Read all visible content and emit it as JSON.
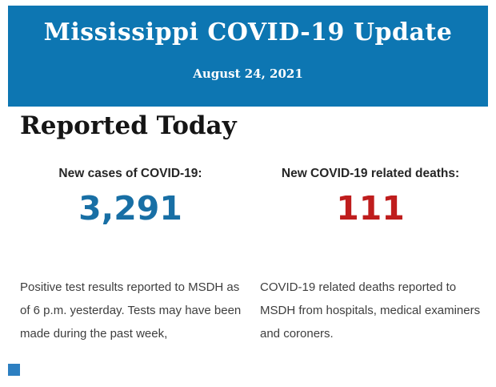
{
  "header": {
    "title": "Mississippi COVID-19 Update",
    "date": "August 24, 2021",
    "background_color": "#0d76b2",
    "text_color": "#ffffff"
  },
  "section": {
    "heading": "Reported Today"
  },
  "stats": [
    {
      "label": "New cases of COVID-19:",
      "value": "3,291",
      "value_color": "#186fa5",
      "description": "Positive test results reported to MSDH as\nof 6 p.m. yesterday. Tests may have been\nmade during the past week,"
    },
    {
      "label": "New COVID-19 related deaths:",
      "value": "111",
      "value_color": "#bf1d1d",
      "description": "COVID-19 related deaths reported to\nMSDH from hospitals, medical examiners\nand coroners."
    }
  ],
  "footer": {
    "artifact_color": "#2d7fc1"
  }
}
